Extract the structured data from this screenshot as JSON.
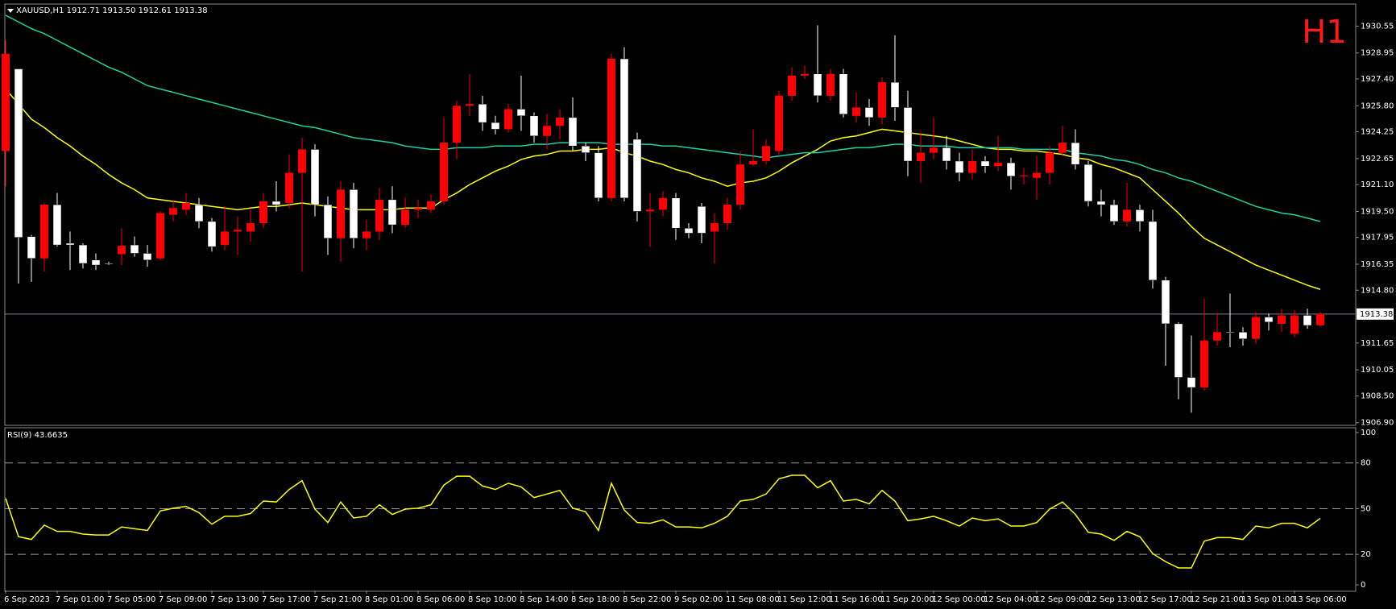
{
  "chart_data": [
    {
      "type": "candlestick",
      "title": "XAUUSD,H1  1912.71 1913.50 1912.61 1913.38",
      "annotation": "H1",
      "categories": [
        "6 Sep 2023",
        null,
        null,
        null,
        "7 Sep 01:00",
        null,
        null,
        null,
        "7 Sep 05:00",
        null,
        null,
        null,
        "7 Sep 09:00",
        null,
        null,
        null,
        "7 Sep 13:00",
        null,
        null,
        null,
        "7 Sep 17:00",
        null,
        null,
        null,
        "7 Sep 21:00",
        null,
        null,
        null,
        "8 Sep 01:00",
        null,
        null,
        null,
        "8 Sep 06:00",
        null,
        null,
        null,
        "8 Sep 10:00",
        null,
        null,
        null,
        "8 Sep 14:00",
        null,
        null,
        null,
        "8 Sep 18:00",
        null,
        null,
        null,
        "8 Sep 22:00",
        null,
        null,
        null,
        "9 Sep 02:00",
        null,
        null,
        null,
        "11 Sep 08:00",
        null,
        null,
        null,
        "11 Sep 12:00",
        null,
        null,
        null,
        "11 Sep 16:00",
        null,
        null,
        null,
        "11 Sep 20:00",
        null,
        null,
        null,
        "12 Sep 00:00",
        null,
        null,
        null,
        "12 Sep 04:00",
        null,
        null,
        null,
        "12 Sep 09:00",
        null,
        null,
        null,
        "12 Sep 13:00",
        null,
        null,
        null,
        "12 Sep 17:00",
        null,
        null,
        null,
        "12 Sep 21:00",
        null,
        null,
        null,
        "13 Sep 01:00",
        null,
        null,
        null,
        "13 Sep 06:00",
        null,
        null
      ],
      "open": [
        1923.1,
        1928.0,
        1918.0,
        1916.7,
        1919.9,
        1917.6,
        1917.5,
        1916.6,
        1916.4,
        1916.95,
        1917.5,
        1917.0,
        1916.7,
        1919.3,
        1919.6,
        1919.9,
        1918.9,
        1917.5,
        1918.3,
        1918.3,
        1918.8,
        1920.1,
        1920.0,
        1921.8,
        1923.2,
        1919.9,
        1917.9,
        1920.8,
        1917.9,
        1918.3,
        1920.2,
        1918.7,
        1919.6,
        1919.6,
        1920.1,
        1923.6,
        1925.8,
        1925.9,
        1924.8,
        1924.4,
        1925.6,
        1925.2,
        1924.0,
        1924.6,
        1925.1,
        1923.4,
        1923.0,
        1920.3,
        1928.6,
        1923.8,
        1919.5,
        1919.6,
        1920.3,
        1918.5,
        1919.8,
        1918.3,
        1918.8,
        1919.9,
        1922.3,
        1922.5,
        1923.1,
        1926.4,
        1927.6,
        1927.7,
        1926.4,
        1927.7,
        1925.2,
        1925.7,
        1925.1,
        1927.2,
        1925.7,
        1922.5,
        1923.0,
        1923.3,
        1922.5,
        1921.8,
        1922.5,
        1922.2,
        1922.4,
        1921.6,
        1921.5,
        1921.8,
        1923.0,
        1923.6,
        1922.3,
        1920.1,
        1919.9,
        1918.9,
        1919.6,
        1918.9,
        1915.4,
        1912.8,
        1909.6,
        1909.0,
        1911.8,
        1912.3,
        1912.3,
        1911.9,
        1913.2,
        1912.8,
        1912.2,
        1913.3,
        1912.71
      ],
      "high": [
        1929.7,
        1928.0,
        1918.1,
        1920.0,
        1920.6,
        1918.3,
        1917.6,
        1917.0,
        1916.5,
        1918.5,
        1918.0,
        1917.5,
        1919.5,
        1920.2,
        1920.6,
        1920.3,
        1919.1,
        1919.8,
        1919.2,
        1919.6,
        1920.6,
        1921.3,
        1922.9,
        1923.9,
        1923.5,
        1920.4,
        1921.3,
        1921.2,
        1919.0,
        1920.9,
        1921.0,
        1920.3,
        1920.2,
        1920.5,
        1925.1,
        1926.1,
        1927.7,
        1926.4,
        1925.2,
        1925.9,
        1927.6,
        1925.4,
        1925.3,
        1925.6,
        1926.3,
        1923.6,
        1923.4,
        1928.9,
        1929.3,
        1924.2,
        1920.6,
        1920.7,
        1920.6,
        1918.8,
        1920.0,
        1919.4,
        1920.3,
        1923.1,
        1924.4,
        1923.8,
        1926.7,
        1928.1,
        1928.2,
        1930.6,
        1928.0,
        1928.0,
        1926.6,
        1926.2,
        1927.5,
        1930.0,
        1926.7,
        1924.2,
        1925.1,
        1924.0,
        1923.0,
        1923.2,
        1922.8,
        1924.0,
        1922.7,
        1922.1,
        1922.8,
        1923.4,
        1924.6,
        1924.4,
        1922.5,
        1920.8,
        1920.2,
        1921.2,
        1919.9,
        1919.6,
        1915.6,
        1912.9,
        1912.1,
        1914.3,
        1913.4,
        1914.6,
        1912.6,
        1913.5,
        1913.4,
        1913.7,
        1913.6,
        1913.7,
        1913.5
      ],
      "low": [
        1921.0,
        1915.2,
        1915.3,
        1915.9,
        1917.4,
        1916.0,
        1916.1,
        1916.0,
        1916.3,
        1916.3,
        1916.8,
        1916.2,
        1916.6,
        1918.9,
        1919.3,
        1918.5,
        1917.1,
        1917.2,
        1916.9,
        1917.7,
        1918.5,
        1919.5,
        1919.7,
        1915.9,
        1919.2,
        1916.9,
        1916.5,
        1917.3,
        1917.2,
        1917.8,
        1918.2,
        1918.5,
        1919.1,
        1919.4,
        1919.9,
        1922.6,
        1925.2,
        1924.3,
        1924.1,
        1924.2,
        1924.3,
        1923.6,
        1923.2,
        1923.8,
        1923.1,
        1922.5,
        1920.1,
        1920.1,
        1920.1,
        1918.9,
        1917.4,
        1919.2,
        1917.8,
        1917.9,
        1917.6,
        1916.4,
        1918.4,
        1919.6,
        1922.2,
        1922.3,
        1922.9,
        1926.1,
        1927.4,
        1926.0,
        1926.1,
        1925.1,
        1924.8,
        1924.6,
        1924.7,
        1924.9,
        1921.6,
        1921.2,
        1922.6,
        1922.0,
        1921.3,
        1921.4,
        1921.8,
        1921.9,
        1920.8,
        1921.1,
        1920.2,
        1921.1,
        1922.8,
        1922.0,
        1919.8,
        1919.2,
        1918.7,
        1918.6,
        1918.3,
        1914.9,
        1910.3,
        1908.3,
        1907.5,
        1908.8,
        1911.5,
        1911.4,
        1911.5,
        1911.6,
        1912.4,
        1912.3,
        1912.0,
        1912.5,
        1912.61
      ],
      "close": [
        1928.9,
        1917.95,
        1916.7,
        1919.9,
        1917.5,
        1917.5,
        1916.4,
        1916.3,
        1916.4,
        1917.45,
        1917.0,
        1916.6,
        1919.4,
        1919.7,
        1920.0,
        1918.9,
        1917.4,
        1918.3,
        1918.4,
        1918.8,
        1920.1,
        1919.9,
        1921.8,
        1923.2,
        1919.9,
        1917.9,
        1920.8,
        1917.9,
        1918.3,
        1920.2,
        1918.7,
        1919.6,
        1919.7,
        1920.1,
        1923.6,
        1925.8,
        1925.9,
        1924.8,
        1924.4,
        1925.6,
        1925.2,
        1924.0,
        1924.6,
        1925.1,
        1923.4,
        1923.0,
        1920.3,
        1928.6,
        1920.3,
        1919.5,
        1919.6,
        1920.3,
        1918.5,
        1918.2,
        1918.2,
        1918.8,
        1919.9,
        1922.3,
        1922.5,
        1923.4,
        1926.4,
        1927.6,
        1927.7,
        1926.4,
        1927.7,
        1925.3,
        1925.7,
        1925.1,
        1927.2,
        1925.7,
        1922.5,
        1923.0,
        1923.3,
        1922.5,
        1921.8,
        1922.5,
        1922.2,
        1922.4,
        1921.6,
        1921.65,
        1921.8,
        1923.0,
        1923.6,
        1922.3,
        1920.1,
        1919.9,
        1918.9,
        1919.6,
        1918.9,
        1915.4,
        1912.8,
        1909.6,
        1909.0,
        1911.8,
        1912.3,
        1912.3,
        1911.9,
        1913.2,
        1912.9,
        1913.3,
        1913.3,
        1912.7,
        1913.38
      ],
      "up_color": "#ff0000",
      "down_color": "#ffffff",
      "moving_averages": [
        {
          "color": "#ffff00",
          "values": [
            1926.8,
            1925.9,
            1925.0,
            1924.5,
            1923.9,
            1923.4,
            1922.8,
            1922.3,
            1921.7,
            1921.2,
            1920.8,
            1920.3,
            1920.2,
            1920.1,
            1920.0,
            1919.9,
            1919.8,
            1919.7,
            1919.6,
            1919.7,
            1919.8,
            1919.8,
            1919.9,
            1920.0,
            1919.9,
            1919.8,
            1919.7,
            1919.6,
            1919.6,
            1919.6,
            1919.6,
            1919.7,
            1919.7,
            1919.7,
            1920.2,
            1920.6,
            1921.1,
            1921.5,
            1921.9,
            1922.2,
            1922.6,
            1922.8,
            1922.9,
            1923.1,
            1923.1,
            1923.2,
            1923.2,
            1923.3,
            1923.0,
            1922.8,
            1922.5,
            1922.3,
            1922.0,
            1921.8,
            1921.5,
            1921.3,
            1921.0,
            1921.2,
            1921.3,
            1921.5,
            1921.9,
            1922.4,
            1922.8,
            1923.2,
            1923.7,
            1923.9,
            1924.0,
            1924.2,
            1924.4,
            1924.3,
            1924.2,
            1924.1,
            1924.0,
            1923.9,
            1923.7,
            1923.5,
            1923.3,
            1923.2,
            1923.2,
            1923.1,
            1923.1,
            1923.0,
            1922.9,
            1922.7,
            1922.6,
            1922.3,
            1922.1,
            1921.8,
            1921.5,
            1920.8,
            1920.1,
            1919.4,
            1918.6,
            1917.9,
            1917.5,
            1917.1,
            1916.7,
            1916.3,
            1916.0,
            1915.7,
            1915.4,
            1915.1,
            1914.85
          ]
        },
        {
          "color": "#1fd1a8",
          "values": [
            1931.2,
            1930.8,
            1930.4,
            1930.1,
            1929.7,
            1929.3,
            1928.9,
            1928.5,
            1928.1,
            1927.8,
            1927.4,
            1927.0,
            1926.8,
            1926.6,
            1926.4,
            1926.2,
            1926.0,
            1925.8,
            1925.6,
            1925.4,
            1925.2,
            1925.0,
            1924.8,
            1924.6,
            1924.5,
            1924.3,
            1924.1,
            1923.9,
            1923.8,
            1923.7,
            1923.6,
            1923.4,
            1923.3,
            1923.2,
            1923.2,
            1923.3,
            1923.3,
            1923.3,
            1923.4,
            1923.4,
            1923.4,
            1923.5,
            1923.5,
            1923.6,
            1923.6,
            1923.6,
            1923.6,
            1923.5,
            1923.5,
            1923.5,
            1923.5,
            1923.4,
            1923.4,
            1923.3,
            1923.2,
            1923.1,
            1923.0,
            1922.9,
            1922.8,
            1922.7,
            1922.8,
            1922.9,
            1923.0,
            1923.0,
            1923.1,
            1923.2,
            1923.3,
            1923.3,
            1923.4,
            1923.5,
            1923.5,
            1923.4,
            1923.4,
            1923.4,
            1923.3,
            1923.3,
            1923.3,
            1923.3,
            1923.3,
            1923.2,
            1923.2,
            1923.2,
            1923.2,
            1923.0,
            1922.9,
            1922.8,
            1922.6,
            1922.5,
            1922.3,
            1922.0,
            1921.8,
            1921.5,
            1921.3,
            1921.0,
            1920.7,
            1920.4,
            1920.1,
            1919.8,
            1919.6,
            1919.4,
            1919.3,
            1919.1,
            1918.9
          ]
        }
      ],
      "current_price": 1913.38,
      "price_line_color": "#6b7f99",
      "ylim": [
        1906.79,
        1931.82
      ],
      "yticks": [
        1930.55,
        1928.95,
        {
          "value": 1927.4,
          "label": "1927.40"
        },
        {
          "value": 1925.8,
          "label": "1925.80"
        },
        1924.25,
        1922.65,
        {
          "value": 1921.1,
          "label": "1921.10"
        },
        {
          "value": 1919.5,
          "label": "1919.50"
        },
        1917.95,
        1916.35,
        {
          "value": 1914.8,
          "label": "1914.80"
        },
        1911.65,
        1910.05,
        {
          "value": 1908.5,
          "label": "1908.50"
        },
        {
          "value": 1906.9,
          "label": "1906.90"
        }
      ]
    },
    {
      "type": "line",
      "title": "RSI(9) 43.6635",
      "color": "#ffff00",
      "values": [
        56.7,
        31.6,
        29.8,
        39.2,
        35.1,
        35.1,
        33.3,
        32.7,
        32.7,
        38.0,
        36.8,
        35.7,
        48.5,
        50.3,
        51.5,
        47.4,
        39.8,
        45.0,
        45.0,
        46.8,
        55.0,
        54.4,
        62.6,
        68.4,
        49.7,
        40.9,
        54.4,
        43.9,
        45.0,
        52.6,
        46.2,
        49.7,
        50.3,
        52.6,
        65.5,
        71.3,
        71.3,
        64.9,
        62.6,
        66.7,
        64.3,
        57.3,
        59.6,
        62.0,
        50.3,
        48.0,
        35.7,
        66.7,
        49.1,
        40.9,
        40.4,
        42.7,
        38.0,
        38.0,
        37.4,
        40.4,
        45.0,
        55.0,
        56.1,
        59.6,
        69.6,
        71.9,
        71.9,
        63.7,
        68.4,
        55.0,
        56.1,
        53.2,
        62.0,
        55.0,
        42.1,
        43.3,
        45.0,
        42.1,
        38.6,
        43.9,
        42.1,
        43.3,
        38.6,
        38.6,
        40.9,
        49.7,
        54.4,
        46.2,
        34.5,
        33.3,
        29.2,
        35.1,
        31.6,
        20.5,
        15.2,
        11.1,
        11.1,
        28.7,
        31.0,
        31.0,
        29.8,
        38.6,
        37.4,
        40.4,
        40.4,
        37.4,
        43.6635
      ],
      "levels": [
        20,
        50,
        80
      ],
      "ylim": [
        -3.7,
        102.6
      ],
      "yticks": [
        0,
        20,
        50,
        80,
        100
      ]
    }
  ]
}
